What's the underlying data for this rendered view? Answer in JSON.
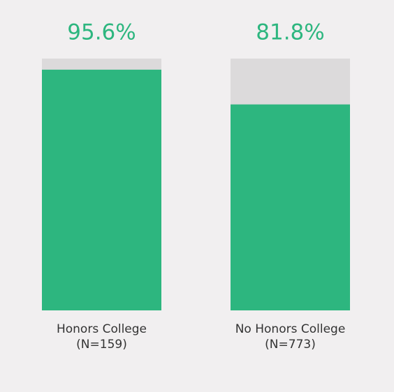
{
  "chart_data": {
    "type": "bar",
    "categories": [
      "Honors College",
      "No Honors College"
    ],
    "n_labels": [
      "(N=159)",
      "(N=773)"
    ],
    "values": [
      95.6,
      81.8
    ],
    "value_labels": [
      "95.6%",
      "81.8%"
    ],
    "color": "#2db67f",
    "track_color": "#dcdadb",
    "ylim": [
      0,
      100
    ]
  }
}
